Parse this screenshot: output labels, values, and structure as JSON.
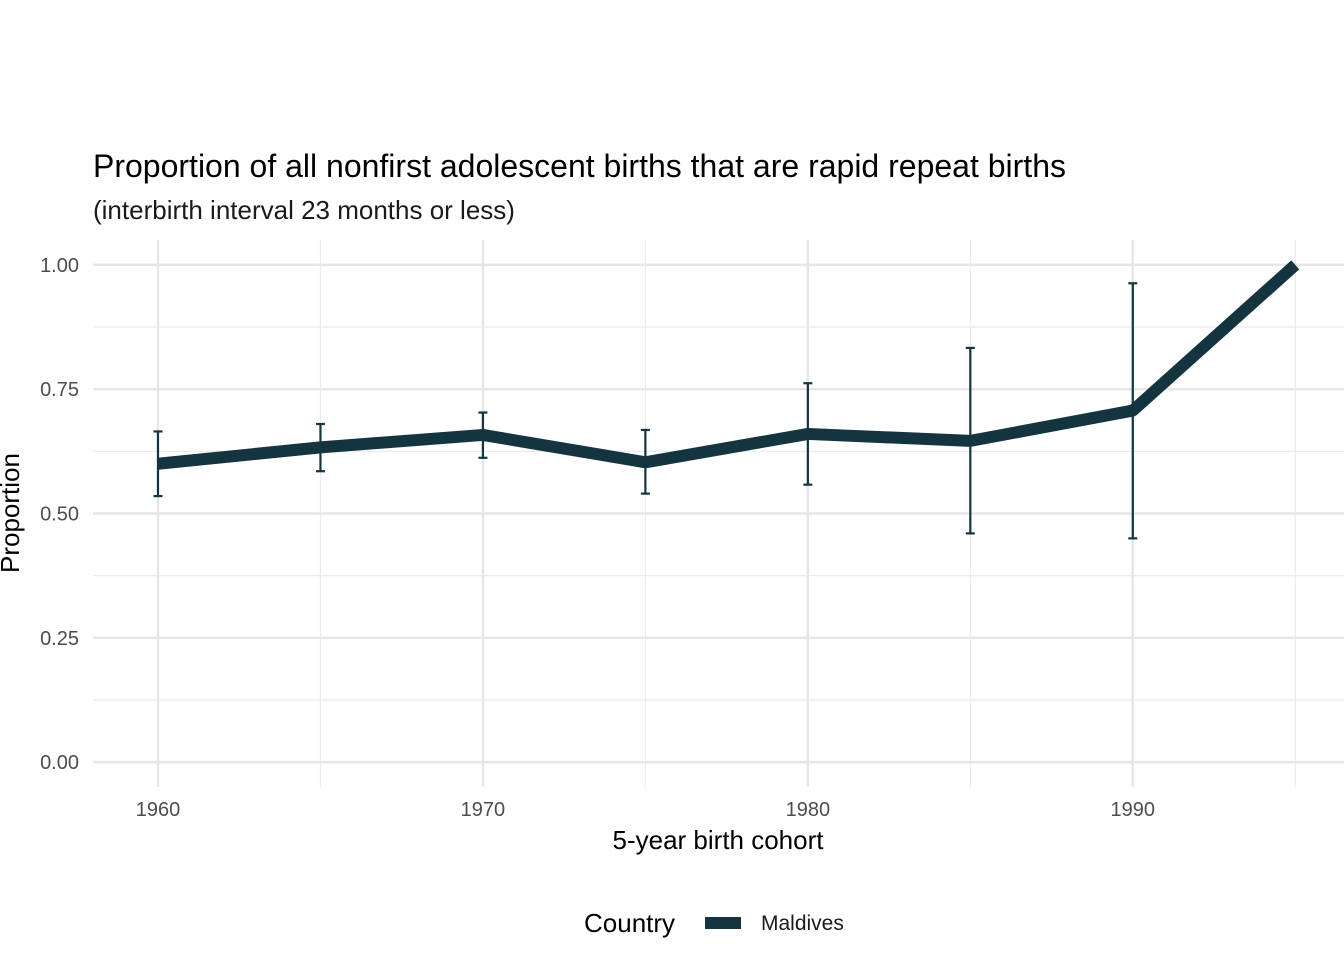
{
  "chart_data": {
    "type": "line",
    "title": "Proportion of all nonfirst adolescent births that are rapid repeat births",
    "subtitle": "(interbirth interval 23 months or less)",
    "xlabel": "5-year birth cohort",
    "ylabel": "Proportion",
    "xlim": [
      1958,
      1996.5
    ],
    "ylim": [
      -0.05,
      1.05
    ],
    "x_ticks": [
      1960,
      1970,
      1980,
      1990
    ],
    "x_tick_labels": [
      "1960",
      "1970",
      "1980",
      "1990"
    ],
    "y_ticks": [
      0,
      0.25,
      0.5,
      0.75,
      1
    ],
    "y_tick_labels": [
      "0.00",
      "0.25",
      "0.50",
      "0.75",
      "1.00"
    ],
    "grid": true,
    "legend": {
      "title": "Country",
      "position": "bottom"
    },
    "series": [
      {
        "name": "Maldives",
        "color": "#14343f",
        "x": [
          1960,
          1965,
          1970,
          1975,
          1980,
          1985,
          1990,
          1995
        ],
        "y": [
          0.6,
          0.633,
          0.658,
          0.603,
          0.66,
          0.646,
          0.707,
          1.0
        ],
        "lower": [
          0.535,
          0.585,
          0.612,
          0.54,
          0.558,
          0.46,
          0.45,
          null
        ],
        "upper": [
          0.665,
          0.68,
          0.703,
          0.668,
          0.762,
          0.833,
          0.963,
          null
        ]
      }
    ]
  }
}
